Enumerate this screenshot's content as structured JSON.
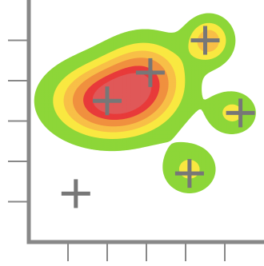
{
  "chart_data": {
    "type": "contour",
    "title": "",
    "xlabel": "",
    "ylabel": "",
    "xlim": [
      0,
      6
    ],
    "ylim": [
      0,
      6
    ],
    "x_ticks": [
      1,
      2,
      3,
      4,
      5
    ],
    "y_ticks": [
      1,
      2,
      3,
      4,
      5
    ],
    "grid": false,
    "colors": {
      "axis": "#888888",
      "marker": "#777777",
      "levels": [
        "#8dd638",
        "#f9e841",
        "#f8bf47",
        "#f0903f",
        "#e83a3a",
        "#e05858"
      ]
    },
    "points": [
      {
        "x": 1.2,
        "y": 1.2
      },
      {
        "x": 2.0,
        "y": 3.5
      },
      {
        "x": 3.1,
        "y": 4.2
      },
      {
        "x": 4.5,
        "y": 5.0
      },
      {
        "x": 5.4,
        "y": 3.2
      },
      {
        "x": 4.1,
        "y": 1.7
      }
    ],
    "density_peaks": [
      {
        "x": 2.1,
        "y": 3.5,
        "weight": 1.0,
        "sx": 0.95,
        "sy": 0.6
      },
      {
        "x": 3.0,
        "y": 4.2,
        "weight": 0.55,
        "sx": 0.7,
        "sy": 0.6
      },
      {
        "x": 4.6,
        "y": 5.0,
        "weight": 0.55,
        "sx": 0.38,
        "sy": 0.38
      },
      {
        "x": 5.2,
        "y": 3.2,
        "weight": 0.35,
        "sx": 0.4,
        "sy": 0.35
      },
      {
        "x": 4.1,
        "y": 1.8,
        "weight": 0.35,
        "sx": 0.45,
        "sy": 0.4
      }
    ],
    "contour_thresholds": [
      0.12,
      0.3,
      0.45,
      0.6,
      0.78,
      0.93
    ]
  }
}
